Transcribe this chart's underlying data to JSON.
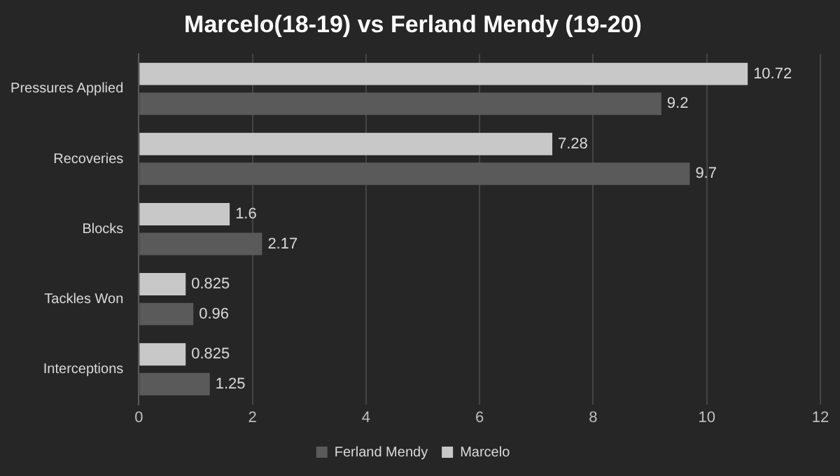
{
  "chart_data": {
    "type": "bar",
    "orientation": "horizontal",
    "title": "Marcelo(18-19) vs Ferland Mendy (19-20)",
    "categories": [
      "Pressures Applied",
      "Recoveries",
      "Blocks",
      "Tackles Won",
      "Interceptions"
    ],
    "series": [
      {
        "name": "Marcelo",
        "color": "#c8c8c8",
        "values": [
          10.72,
          7.28,
          1.6,
          0.825,
          0.825
        ]
      },
      {
        "name": "Ferland Mendy",
        "color": "#5a5a5a",
        "values": [
          9.2,
          9.7,
          2.17,
          0.96,
          1.25
        ]
      }
    ],
    "xlim": [
      0,
      12
    ],
    "xticks": [
      0,
      2,
      4,
      6,
      8,
      10,
      12
    ],
    "grid": "x",
    "legend": "bottom",
    "data_labels": true
  }
}
